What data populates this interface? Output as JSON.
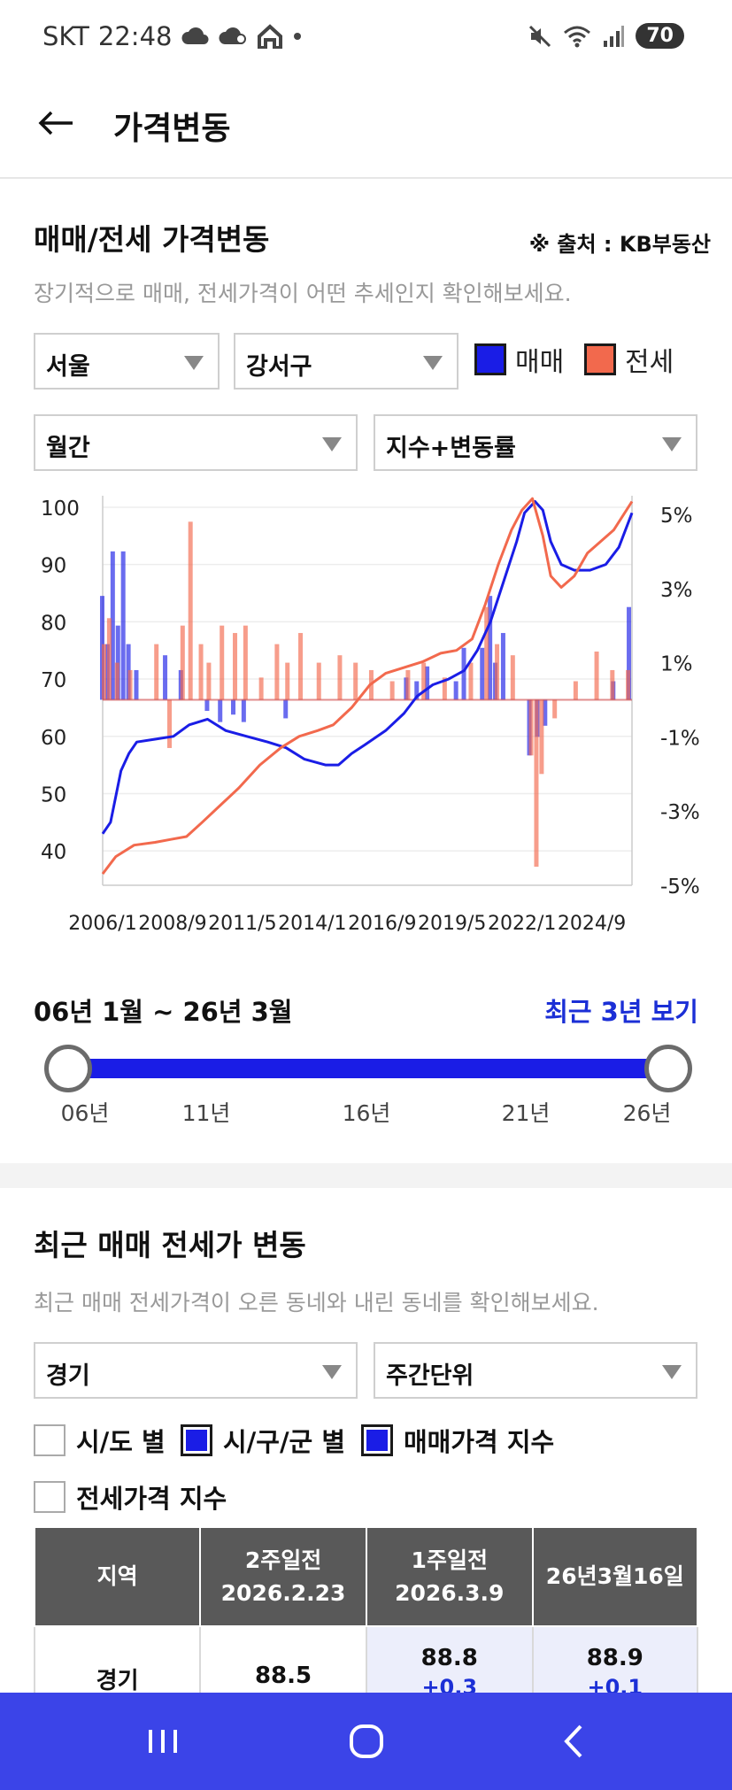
{
  "status": {
    "carrier": "SKT",
    "time": "22:48",
    "battery": "70"
  },
  "header": {
    "title": "가격변동"
  },
  "price_section": {
    "title": "매매/전세 가격변동",
    "source": "※ 출처 : KB부동산",
    "desc": "장기적으로 매매, 전세가격이 어떤 추세인지 확인해보세요.",
    "region": "서울",
    "district": "강서구",
    "period": "월간",
    "mode": "지수+변동률",
    "legend_sale": "매매",
    "legend_jeonse": "전세",
    "colors": {
      "sale": "#1a1de6",
      "jeonse": "#f2694d"
    }
  },
  "chart_data": {
    "type": "line",
    "x_ticks": [
      "2006/1",
      "2008/9",
      "2011/5",
      "2014/1",
      "2016/9",
      "2019/5",
      "2022/1",
      "2024/9"
    ],
    "y_left_ticks": [
      "100",
      "90",
      "80",
      "70",
      "60",
      "50",
      "40"
    ],
    "y_right_ticks": [
      "5%",
      "3%",
      "1%",
      "-1%",
      "-3%",
      "-5%"
    ],
    "ylim_left": [
      34,
      102
    ],
    "ylim_right": [
      -5,
      5.5
    ],
    "x_range": [
      2006.0,
      2026.2
    ],
    "series": [
      {
        "name": "매매",
        "kind": "index",
        "x": [
          2006.0,
          2006.3,
          2006.7,
          2007.0,
          2007.3,
          2008.0,
          2008.7,
          2009.3,
          2010.0,
          2010.7,
          2011.5,
          2012.3,
          2013.0,
          2013.7,
          2014.5,
          2015.0,
          2015.5,
          2016.0,
          2016.8,
          2017.5,
          2018.0,
          2018.6,
          2019.2,
          2019.8,
          2020.3,
          2020.8,
          2021.3,
          2021.8,
          2022.1,
          2022.5,
          2022.8,
          2023.1,
          2023.5,
          2024.0,
          2024.6,
          2025.2,
          2025.7,
          2026.2
        ],
        "values": [
          43,
          45,
          54,
          57,
          59,
          59.5,
          60,
          62,
          63,
          61,
          60,
          59,
          58,
          56,
          55,
          55,
          57,
          58.5,
          61,
          64,
          67,
          69,
          70,
          71.5,
          75,
          80,
          87,
          94,
          99,
          101,
          99.5,
          94,
          90,
          89,
          89,
          90,
          93,
          99
        ]
      },
      {
        "name": "전세",
        "kind": "index",
        "x": [
          2006.0,
          2006.5,
          2007.2,
          2008.0,
          2008.6,
          2009.2,
          2009.8,
          2010.5,
          2011.2,
          2012.0,
          2012.8,
          2013.5,
          2014.2,
          2014.8,
          2015.5,
          2016.2,
          2016.8,
          2017.5,
          2018.2,
          2018.9,
          2019.5,
          2020.1,
          2020.6,
          2021.1,
          2021.6,
          2022.0,
          2022.4,
          2022.8,
          2023.1,
          2023.5,
          2024.0,
          2024.5,
          2025.0,
          2025.5,
          2026.2
        ],
        "values": [
          36,
          39,
          41,
          41.5,
          42,
          42.5,
          45,
          48,
          51,
          55,
          58,
          60,
          61,
          62,
          65,
          69,
          71,
          72,
          73,
          74.5,
          75,
          77,
          83,
          90,
          96,
          99.5,
          101.5,
          95,
          88,
          86,
          88,
          92,
          94,
          96,
          101
        ]
      },
      {
        "name": "매매",
        "kind": "change_pct",
        "x": [
          2006.0,
          2006.2,
          2006.4,
          2006.6,
          2006.8,
          2007.0,
          2007.3,
          2008.4,
          2009.0,
          2010.0,
          2010.5,
          2011.0,
          2011.4,
          2013.0,
          2017.6,
          2018.0,
          2018.4,
          2019.5,
          2019.8,
          2020.5,
          2020.8,
          2021.0,
          2021.3,
          2022.3,
          2022.6,
          2022.9,
          2025.5,
          2026.1
        ],
        "values": [
          2.8,
          1.5,
          4.0,
          2.0,
          4.0,
          1.5,
          0.8,
          1.2,
          0.8,
          -0.3,
          -0.6,
          -0.4,
          -0.6,
          -0.5,
          0.6,
          0.5,
          0.9,
          0.5,
          1.4,
          1.4,
          2.8,
          1.0,
          1.8,
          -1.5,
          -1.0,
          -0.7,
          0.5,
          2.5
        ]
      },
      {
        "name": "전세",
        "kind": "change_pct",
        "x": [
          2006.0,
          2006.2,
          2006.5,
          2007.0,
          2008.0,
          2008.5,
          2009.0,
          2009.3,
          2009.7,
          2010.0,
          2010.5,
          2011.0,
          2011.4,
          2012.0,
          2012.6,
          2013.0,
          2013.5,
          2014.2,
          2015.0,
          2015.6,
          2016.2,
          2017.0,
          2017.6,
          2018.2,
          2019.0,
          2020.0,
          2020.6,
          2021.0,
          2021.6,
          2022.3,
          2022.5,
          2022.7,
          2023.2,
          2024.0,
          2024.8,
          2025.4,
          2026.0
        ],
        "values": [
          1.5,
          2.2,
          1.0,
          0.8,
          1.5,
          -1.3,
          2.0,
          4.8,
          1.5,
          1.0,
          2.0,
          1.8,
          2.0,
          0.6,
          1.5,
          1.0,
          1.8,
          1.0,
          1.2,
          1.0,
          0.8,
          0.5,
          0.8,
          1.0,
          0.6,
          1.0,
          2.5,
          1.5,
          1.2,
          -1.5,
          -4.5,
          -2.0,
          -0.5,
          0.5,
          1.3,
          0.8,
          0.8
        ]
      }
    ]
  },
  "range": {
    "label": "06년 1월 ~ 26년 3월",
    "recent_link": "최근 3년 보기",
    "ticks": [
      "06년",
      "11년",
      "16년",
      "21년",
      "26년"
    ]
  },
  "recent_section": {
    "title": "최근 매매 전세가 변동",
    "desc": "최근 매매 전세가격이 오른 동네와 내린 동네를 확인해보세요.",
    "region": "경기",
    "unit": "주간단위",
    "cb_sido": "시/도 별",
    "cb_sigungu": "시/구/군 별",
    "cb_sale_index": "매매가격 지수",
    "cb_jeonse_index": "전세가격 지수",
    "table": {
      "headers": [
        "지역",
        "2주일전\n2026.2.23",
        "1주일전\n2026.3.9",
        "26년3월16일"
      ],
      "rows": [
        {
          "region": "경기",
          "v1": "88.5",
          "v2": "88.8",
          "c2": "+0.3",
          "v3": "88.9",
          "c3": "+0.1"
        }
      ]
    }
  }
}
